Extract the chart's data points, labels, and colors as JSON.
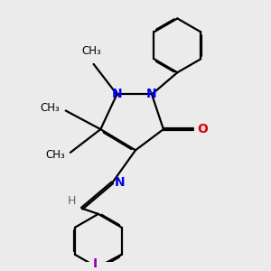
{
  "bg_color": "#ebebeb",
  "bond_color": "#000000",
  "N_color": "#0000ee",
  "O_color": "#dd0000",
  "I_color": "#8800aa",
  "H_color": "#666666",
  "lw": 1.6,
  "dbo": 0.025,
  "figsize": [
    3.0,
    3.0
  ],
  "dpi": 100,
  "xlim": [
    -1.8,
    2.2
  ],
  "ylim": [
    -2.8,
    2.8
  ]
}
